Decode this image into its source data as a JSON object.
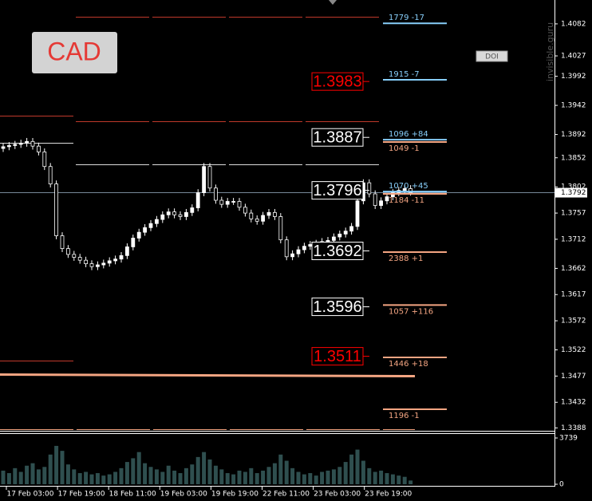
{
  "chart_data": {
    "type": "candlestick",
    "title": "CAD",
    "watermark": "invisible.guru",
    "button": "DOI",
    "ylim": [
      1.3383,
      1.4123
    ],
    "yticks": [
      1.4082,
      1.4027,
      1.3992,
      1.3942,
      1.3892,
      1.3852,
      1.3802,
      1.3757,
      1.3712,
      1.3662,
      1.3617,
      1.3572,
      1.3522,
      1.3477,
      1.3432,
      1.3388
    ],
    "current_price": 1.3792,
    "x_labels": [
      "17 Feb 03:00",
      "17 Feb 19:00",
      "18 Feb 11:00",
      "19 Feb 03:00",
      "19 Feb 19:00",
      "22 Feb 11:00",
      "23 Feb 03:00",
      "23 Feb 19:00"
    ],
    "up_color": "#ffffff",
    "down_color": "#000000",
    "candles": [
      [
        1.3868,
        1.3877,
        1.3862,
        1.3871
      ],
      [
        1.3871,
        1.3879,
        1.3865,
        1.3873
      ],
      [
        1.3873,
        1.3881,
        1.3867,
        1.3875
      ],
      [
        1.3875,
        1.3883,
        1.3869,
        1.3877
      ],
      [
        1.3877,
        1.3886,
        1.3871,
        1.388
      ],
      [
        1.388,
        1.3886,
        1.3866,
        1.3872
      ],
      [
        1.3872,
        1.3878,
        1.3856,
        1.3862
      ],
      [
        1.3862,
        1.3868,
        1.3831,
        1.3837
      ],
      [
        1.3837,
        1.3843,
        1.3801,
        1.3807
      ],
      [
        1.3807,
        1.3813,
        1.3712,
        1.3718
      ],
      [
        1.3718,
        1.3724,
        1.369,
        1.3696
      ],
      [
        1.3696,
        1.3702,
        1.368,
        1.3686
      ],
      [
        1.3686,
        1.3692,
        1.3675,
        1.3681
      ],
      [
        1.3681,
        1.3687,
        1.367,
        1.3676
      ],
      [
        1.3676,
        1.3682,
        1.3664,
        1.367
      ],
      [
        1.367,
        1.3676,
        1.3659,
        1.3665
      ],
      [
        1.3665,
        1.3674,
        1.3659,
        1.3668
      ],
      [
        1.3668,
        1.3677,
        1.3662,
        1.3671
      ],
      [
        1.3671,
        1.3681,
        1.3665,
        1.3675
      ],
      [
        1.3675,
        1.3684,
        1.3669,
        1.3678
      ],
      [
        1.3678,
        1.369,
        1.3672,
        1.3684
      ],
      [
        1.3684,
        1.3705,
        1.3678,
        1.3699
      ],
      [
        1.3699,
        1.372,
        1.3693,
        1.3714
      ],
      [
        1.3714,
        1.373,
        1.3708,
        1.3724
      ],
      [
        1.3724,
        1.3738,
        1.3718,
        1.3732
      ],
      [
        1.3732,
        1.3745,
        1.3726,
        1.3739
      ],
      [
        1.3739,
        1.3752,
        1.3733,
        1.3746
      ],
      [
        1.3746,
        1.376,
        1.374,
        1.3754
      ],
      [
        1.3754,
        1.3765,
        1.3748,
        1.3759
      ],
      [
        1.3759,
        1.3765,
        1.3748,
        1.3754
      ],
      [
        1.3754,
        1.376,
        1.3745,
        1.3751
      ],
      [
        1.3751,
        1.3764,
        1.3745,
        1.3758
      ],
      [
        1.3758,
        1.3772,
        1.3752,
        1.3766
      ],
      [
        1.3766,
        1.3798,
        1.376,
        1.3792
      ],
      [
        1.3792,
        1.3843,
        1.3786,
        1.3837
      ],
      [
        1.3837,
        1.3843,
        1.3794,
        1.38
      ],
      [
        1.38,
        1.3806,
        1.3773,
        1.3779
      ],
      [
        1.3779,
        1.3785,
        1.3766,
        1.3772
      ],
      [
        1.3772,
        1.3783,
        1.3766,
        1.3777
      ],
      [
        1.3777,
        1.3783,
        1.3771,
        1.3777
      ],
      [
        1.3777,
        1.3783,
        1.3761,
        1.3767
      ],
      [
        1.3767,
        1.3773,
        1.3751,
        1.3757
      ],
      [
        1.3757,
        1.3763,
        1.3741,
        1.3747
      ],
      [
        1.3747,
        1.3753,
        1.3737,
        1.3743
      ],
      [
        1.3743,
        1.3759,
        1.3737,
        1.3753
      ],
      [
        1.3753,
        1.3764,
        1.3747,
        1.3758
      ],
      [
        1.3758,
        1.3764,
        1.3745,
        1.3751
      ],
      [
        1.3751,
        1.3757,
        1.3705,
        1.3711
      ],
      [
        1.3711,
        1.3717,
        1.3676,
        1.3682
      ],
      [
        1.3682,
        1.3693,
        1.3676,
        1.3687
      ],
      [
        1.3687,
        1.37,
        1.3681,
        1.3694
      ],
      [
        1.3694,
        1.3706,
        1.3688,
        1.37
      ],
      [
        1.37,
        1.3709,
        1.3694,
        1.3703
      ],
      [
        1.3703,
        1.3711,
        1.3697,
        1.3705
      ],
      [
        1.3705,
        1.3714,
        1.3699,
        1.3708
      ],
      [
        1.3708,
        1.3716,
        1.3702,
        1.371
      ],
      [
        1.371,
        1.3722,
        1.3704,
        1.3716
      ],
      [
        1.3716,
        1.3727,
        1.371,
        1.3721
      ],
      [
        1.3721,
        1.3732,
        1.3715,
        1.3726
      ],
      [
        1.3726,
        1.374,
        1.372,
        1.3734
      ],
      [
        1.3734,
        1.3784,
        1.3728,
        1.3778
      ],
      [
        1.3778,
        1.3815,
        1.3772,
        1.3809
      ],
      [
        1.3809,
        1.3815,
        1.3784,
        1.379
      ],
      [
        1.379,
        1.3796,
        1.3764,
        1.377
      ],
      [
        1.377,
        1.3784,
        1.3764,
        1.3778
      ],
      [
        1.3778,
        1.3791,
        1.3772,
        1.3785
      ],
      [
        1.3785,
        1.3798,
        1.3779,
        1.3792
      ],
      [
        1.3792,
        1.3802,
        1.3786,
        1.3796
      ],
      [
        1.3796,
        1.3805,
        1.379,
        1.3799
      ],
      [
        1.3799,
        1.3805,
        1.3787,
        1.3792
      ]
    ],
    "volume_color": "#2f4f4f",
    "volume_ylim": [
      0,
      3739
    ],
    "volume_yticks": [
      3739,
      0
    ],
    "volumes": [
      1100,
      900,
      1300,
      1000,
      1500,
      1700,
      1200,
      1400,
      2400,
      3100,
      2700,
      1600,
      1200,
      900,
      1000,
      800,
      900,
      700,
      800,
      1000,
      1300,
      1800,
      2100,
      2600,
      1700,
      1400,
      1200,
      1000,
      1500,
      1100,
      900,
      1300,
      1600,
      2200,
      2600,
      2000,
      1500,
      1200,
      900,
      800,
      1100,
      1000,
      1300,
      900,
      1100,
      1400,
      1700,
      2400,
      1900,
      1300,
      1000,
      800,
      900,
      700,
      1000,
      1100,
      1200,
      1400,
      1800,
      2400,
      2800,
      1900,
      1300,
      1000,
      1100,
      900,
      800,
      700,
      600,
      300
    ],
    "levels": [
      {
        "value": 1.3983,
        "color": "#ff0000"
      },
      {
        "value": 1.3887,
        "color": "#ffffff"
      },
      {
        "value": 1.3796,
        "color": "#ffffff"
      },
      {
        "value": 1.3692,
        "color": "#ffffff"
      },
      {
        "value": 1.3596,
        "color": "#ffffff"
      },
      {
        "value": 1.3511,
        "color": "#ff0000"
      }
    ],
    "orders": [
      {
        "label": "1779 -17",
        "price": 1.4083,
        "color": "#87cefa"
      },
      {
        "label": "1915 -7",
        "price": 1.3986,
        "color": "#87cefa"
      },
      {
        "label": "1096 +84",
        "price": 1.3883,
        "color": "#87cefa"
      },
      {
        "label": "1049 -1",
        "price": 1.3879,
        "color": "#f4a582"
      },
      {
        "label": "1070 +45",
        "price": 1.3794,
        "color": "#87cefa"
      },
      {
        "label": "1184 -11",
        "price": 1.379,
        "color": "#f4a582"
      },
      {
        "label": "2388 +1",
        "price": 1.369,
        "color": "#f4a582"
      },
      {
        "label": "1057 +116",
        "price": 1.3599,
        "color": "#f4a582"
      },
      {
        "label": "1446 +18",
        "price": 1.3509,
        "color": "#f4a582"
      },
      {
        "label": "1196 -1",
        "price": 1.342,
        "color": "#f4a582"
      }
    ]
  }
}
